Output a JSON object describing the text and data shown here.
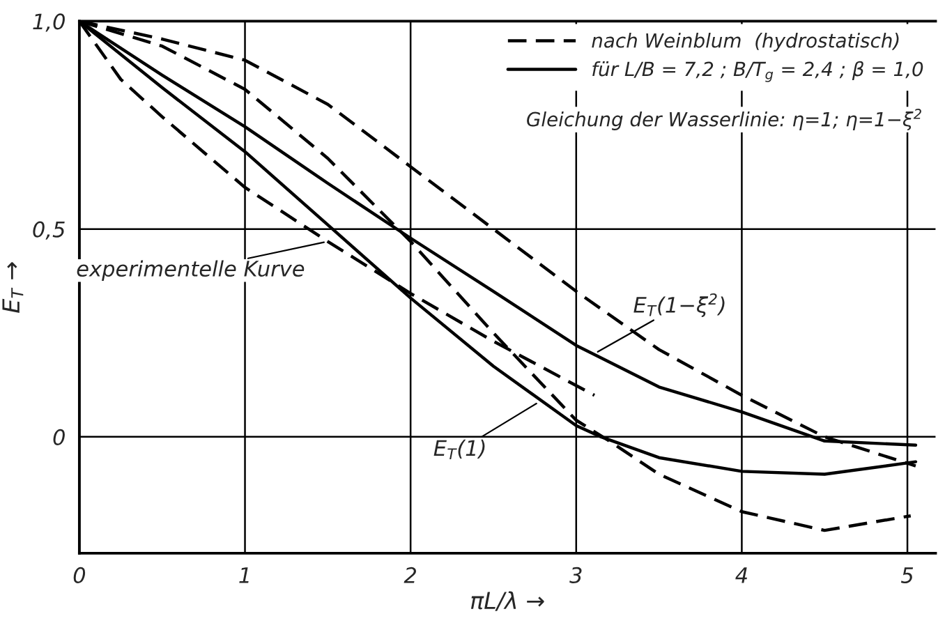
{
  "chart_data": {
    "type": "line",
    "xlabel": "πL/λ →",
    "ylabel": "E$_{T}$ →",
    "xlim": [
      0,
      5.17
    ],
    "ylim": [
      -0.28,
      1.0
    ],
    "xticks": [
      0,
      1,
      2,
      3,
      4,
      5
    ],
    "yticks": [
      {
        "value": 0,
        "label": "0"
      },
      {
        "value": 0.5,
        "label": "0,5"
      },
      {
        "value": 1.0,
        "label": "1,0"
      }
    ],
    "grid": true,
    "legend": "top right",
    "marker": "none",
    "series": [
      {
        "name": "nach Weinblum  (hydrostatisch)",
        "color": "#000000",
        "line_style": "dashed",
        "x": [
          0,
          0.5,
          1,
          1.5,
          2,
          2.5,
          3,
          3.5,
          4,
          4.5,
          5.05
        ],
        "values": [
          1.0,
          0.957,
          0.906,
          0.8,
          0.65,
          0.5,
          0.35,
          0.21,
          0.1,
          0.0,
          -0.07
        ]
      },
      {
        "color": "#000000",
        "line_style": "dashed",
        "x": [
          0,
          0.5,
          1,
          1.5,
          2,
          2.5,
          3,
          3.2,
          3.5,
          4,
          4.5,
          5.02
        ],
        "values": [
          1.0,
          0.94,
          0.836,
          0.67,
          0.47,
          0.25,
          0.04,
          -0.01,
          -0.09,
          -0.18,
          -0.225,
          -0.19
        ]
      },
      {
        "color": "#000000",
        "line_style": "dashed",
        "x": [
          0,
          0.25,
          0.5,
          1,
          1.5,
          2,
          2.5,
          3.11
        ],
        "values": [
          1.0,
          0.86,
          0.77,
          0.6,
          0.47,
          0.345,
          0.23,
          0.1
        ]
      },
      {
        "name": "für L/B = 7,2 ; B/T$_{g}$ = 2,4 ; β = 1,0",
        "color": "#000000",
        "line_style": "solid",
        "x": [
          0,
          0.5,
          1,
          1.5,
          2,
          2.5,
          3,
          3.5,
          4,
          4.5,
          5.05
        ],
        "values": [
          1.0,
          0.87,
          0.746,
          0.61,
          0.478,
          0.35,
          0.22,
          0.12,
          0.06,
          -0.01,
          -0.02
        ]
      },
      {
        "color": "#000000",
        "line_style": "solid",
        "x": [
          0,
          0.5,
          1,
          1.5,
          2,
          2.5,
          3,
          3.15,
          3.5,
          4,
          4.5,
          5.05
        ],
        "values": [
          1.0,
          0.84,
          0.686,
          0.51,
          0.334,
          0.17,
          0.027,
          0.0,
          -0.05,
          -0.083,
          -0.09,
          -0.06
        ]
      }
    ],
    "annotations": [
      "Gleichung der Wasserlinie: η=1; η=1−ξ$^{2}$",
      {
        "text": "experimentelle Kurve",
        "x": 1.5,
        "y": 0.47
      },
      {
        "text": "E$_{T}$(1−ξ$^{2}$)",
        "x": 3.11,
        "y": 0.2
      },
      {
        "text": "E$_{T}$(1)",
        "x": 2.78,
        "y": 0.085
      }
    ]
  }
}
